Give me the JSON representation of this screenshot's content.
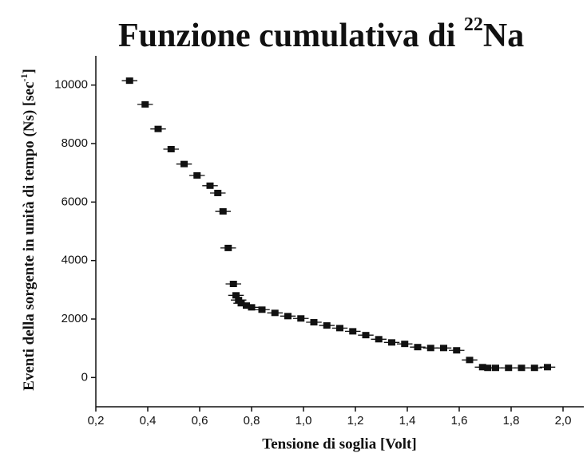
{
  "chart_data": {
    "type": "scatter",
    "title": "Funzione cumulativa di ",
    "title_superscript": "22",
    "title_suffix": "Na",
    "xlabel": "Tensione di soglia [Volt]",
    "ylabel": "Eventi della sorgente in unità di tempo (Ns) [sec",
    "ylabel_superscript": "-1",
    "ylabel_suffix": "]",
    "x": [
      0.33,
      0.39,
      0.44,
      0.49,
      0.54,
      0.59,
      0.64,
      0.67,
      0.69,
      0.71,
      0.73,
      0.74,
      0.75,
      0.76,
      0.78,
      0.8,
      0.84,
      0.89,
      0.94,
      0.99,
      1.04,
      1.09,
      1.14,
      1.19,
      1.24,
      1.29,
      1.34,
      1.39,
      1.44,
      1.49,
      1.54,
      1.59,
      1.64,
      1.69,
      1.71,
      1.74,
      1.79,
      1.84,
      1.89,
      1.94
    ],
    "values": [
      10150,
      9340,
      8500,
      7810,
      7300,
      6910,
      6560,
      6310,
      5680,
      4430,
      3200,
      2810,
      2650,
      2540,
      2460,
      2400,
      2320,
      2210,
      2100,
      2020,
      1890,
      1780,
      1690,
      1580,
      1450,
      1310,
      1200,
      1150,
      1040,
      1010,
      1010,
      930,
      600,
      355,
      330,
      330,
      330,
      330,
      330,
      355
    ],
    "xerr": 0.03,
    "color": "#111111",
    "xlim": [
      0.2,
      2.08
    ],
    "ylim": [
      -1000,
      11000
    ],
    "xticks": [
      {
        "value": 0.2,
        "label": "0,2"
      },
      {
        "value": 0.4,
        "label": "0,4"
      },
      {
        "value": 0.6,
        "label": "0,6"
      },
      {
        "value": 0.8,
        "label": "0,8"
      },
      {
        "value": 1.0,
        "label": "1,0"
      },
      {
        "value": 1.2,
        "label": "1,2"
      },
      {
        "value": 1.4,
        "label": "1,4"
      },
      {
        "value": 1.6,
        "label": "1,6"
      },
      {
        "value": 1.8,
        "label": "1,8"
      },
      {
        "value": 2.0,
        "label": "2,0"
      }
    ],
    "yticks": [
      0,
      2000,
      4000,
      6000,
      8000,
      10000
    ],
    "grid": false
  }
}
